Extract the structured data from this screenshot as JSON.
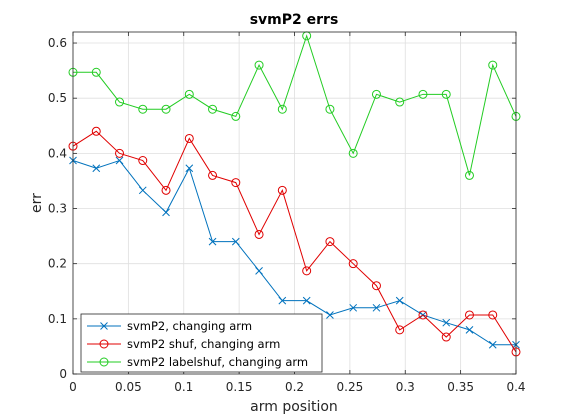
{
  "chart_data": {
    "type": "line",
    "title": "svmP2 errs",
    "xlabel": "arm position",
    "ylabel": "err",
    "xlim": [
      0,
      0.4
    ],
    "ylim": [
      0,
      0.62
    ],
    "xticks": [
      "0",
      "0.05",
      "0.1",
      "0.15",
      "0.2",
      "0.25",
      "0.3",
      "0.35",
      "0.4"
    ],
    "yticks": [
      "0",
      "0.1",
      "0.2",
      "0.3",
      "0.4",
      "0.5",
      "0.6"
    ],
    "grid": true,
    "legend_position": "bottom-left",
    "x": [
      0,
      0.021,
      0.042,
      0.063,
      0.084,
      0.105,
      0.126,
      0.147,
      0.168,
      0.189,
      0.211,
      0.232,
      0.253,
      0.274,
      0.295,
      0.316,
      0.337,
      0.358,
      0.379,
      0.4
    ],
    "series": [
      {
        "name": "svmP2, changing arm",
        "color": "#0072BD",
        "marker": "x",
        "values": [
          0.387,
          0.373,
          0.387,
          0.333,
          0.293,
          0.373,
          0.24,
          0.24,
          0.187,
          0.133,
          0.133,
          0.107,
          0.12,
          0.12,
          0.133,
          0.107,
          0.093,
          0.08,
          0.053,
          0.053
        ]
      },
      {
        "name": "svmP2 shuf, changing arm",
        "color": "#E00000",
        "marker": "o",
        "values": [
          0.413,
          0.44,
          0.4,
          0.387,
          0.333,
          0.427,
          0.36,
          0.347,
          0.253,
          0.333,
          0.187,
          0.24,
          0.2,
          0.16,
          0.08,
          0.107,
          0.067,
          0.107,
          0.107,
          0.04
        ]
      },
      {
        "name": "svmP2 labelshuf, changing arm",
        "color": "#22CC22",
        "marker": "o",
        "values": [
          0.547,
          0.547,
          0.493,
          0.48,
          0.48,
          0.507,
          0.48,
          0.467,
          0.56,
          0.48,
          0.613,
          0.48,
          0.4,
          0.507,
          0.493,
          0.507,
          0.507,
          0.36,
          0.56,
          0.467
        ]
      }
    ]
  }
}
